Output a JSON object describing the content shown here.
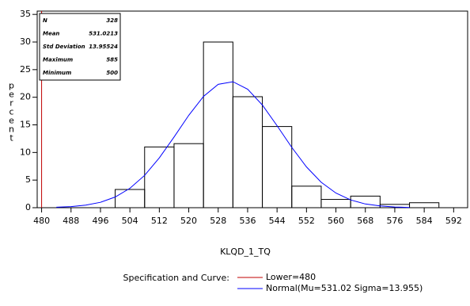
{
  "chart_data": {
    "type": "histogram",
    "xlabel": "KLQD_1_TQ",
    "ylabel": "percent",
    "bins": [
      500,
      508,
      516,
      524,
      532,
      540,
      548,
      556,
      564,
      572,
      580,
      588
    ],
    "values": [
      3.3,
      11,
      11.6,
      30,
      20.1,
      14.7,
      3.9,
      1.5,
      2.1,
      0.6,
      0.9
    ],
    "color": "#000000",
    "xlim": [
      478.8,
      595.8
    ],
    "ylim": [
      0,
      35.6
    ],
    "xticks": [
      480,
      488,
      496,
      504,
      512,
      520,
      528,
      536,
      544,
      552,
      560,
      568,
      576,
      584,
      592
    ],
    "yticks": [
      0,
      5,
      10,
      15,
      20,
      25,
      30,
      35
    ],
    "lower_spec": {
      "name": "Lower=480",
      "value": 480,
      "color": "#c00000"
    },
    "curve": {
      "name": "Normal(Mu=531.02 Sigma=13.955)",
      "color": "#0000ff",
      "x": [
        484,
        488,
        492,
        496,
        500,
        504,
        508,
        512,
        516,
        520,
        524,
        528,
        532,
        536,
        540,
        544,
        548,
        552,
        556,
        560,
        564,
        568,
        572,
        576,
        580
      ],
      "values": [
        0.08,
        0.2,
        0.46,
        0.98,
        1.94,
        3.51,
        5.86,
        9.03,
        12.81,
        16.74,
        20.15,
        22.34,
        22.81,
        21.46,
        18.59,
        14.84,
        10.91,
        7.39,
        4.61,
        2.65,
        1.4,
        0.68,
        0.31,
        0.13,
        0.05
      ]
    },
    "legend_title": "Specification and Curve:",
    "inset": [
      [
        "N",
        "328"
      ],
      [
        "Mean",
        "531.0213"
      ],
      [
        "Std Deviation",
        "13.95524"
      ],
      [
        "Maximum",
        "585"
      ],
      [
        "Minimum",
        "500"
      ]
    ]
  }
}
